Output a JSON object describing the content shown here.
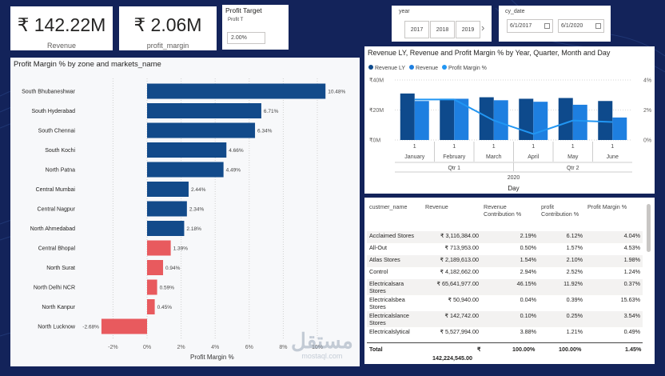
{
  "kpis": {
    "revenue_value": "₹ 142.22M",
    "revenue_label": "Revenue",
    "margin_value": "₹ 2.06M",
    "margin_label": "profit_margin"
  },
  "profit_target": {
    "title": "Profit Target",
    "subtitle": "Profit T",
    "value": "2.00%"
  },
  "year_slicer": {
    "title": "year",
    "options": [
      "2017",
      "2018",
      "2019"
    ],
    "next_icon": "chevron-right-icon"
  },
  "date_slicer": {
    "title": "cy_date",
    "start": "6/1/2017",
    "end": "6/1/2020",
    "icon": "calendar-icon"
  },
  "bar_chart": {
    "title": "Profit Margin % by zone and markets_name",
    "xlabel": "Profit Margin %",
    "colors": {
      "positive": "#124a8a",
      "negative": "#e85a5e"
    },
    "chart_data": {
      "type": "bar",
      "orientation": "horizontal",
      "categories": [
        "South Bhubaneshwar",
        "South Hyderabad",
        "South Chennai",
        "South Kochi",
        "North Patna",
        "Central Mumbai",
        "Central Nagpur",
        "North Ahmedabad",
        "Central Bhopal",
        "North Surat",
        "North Delhi NCR",
        "North Kanpur",
        "North Lucknow"
      ],
      "values": [
        10.48,
        6.71,
        6.34,
        4.66,
        4.49,
        2.44,
        2.34,
        2.18,
        1.39,
        0.94,
        0.59,
        0.45,
        -2.68
      ],
      "labels": [
        "10.48%",
        "6.71%",
        "6.34%",
        "4.66%",
        "4.49%",
        "2.44%",
        "2.34%",
        "2.18%",
        "1.39%",
        "0.94%",
        "0.59%",
        "0.45%",
        "-2.68%"
      ],
      "xticks": [
        "-2%",
        "0%",
        "2%",
        "4%",
        "6%",
        "8%",
        "10%"
      ],
      "xlim": [
        -2.68,
        10.48
      ],
      "threshold": 2.0
    }
  },
  "combo_chart": {
    "title": "Revenue LY, Revenue and Profit Margin % by Year, Quarter, Month and Day",
    "legend": [
      {
        "name": "Revenue LY",
        "color": "#0e4a8c"
      },
      {
        "name": "Revenue",
        "color": "#1e7fe0"
      },
      {
        "name": "Profit Margin %",
        "color": "#2196f3"
      }
    ],
    "y_left_ticks": [
      "₹40M",
      "₹20M",
      "₹0M"
    ],
    "y_right_ticks": [
      "4%",
      "2%",
      "0%"
    ],
    "xlabel": "Day",
    "chart_data": {
      "type": "bar",
      "categories": [
        "January",
        "February",
        "March",
        "April",
        "May",
        "June"
      ],
      "day_labels": [
        "1",
        "1",
        "1",
        "1",
        "1",
        "1"
      ],
      "quarters": [
        "Qtr 1",
        "Qtr 2"
      ],
      "year": "2020",
      "ylim": [
        0,
        40
      ],
      "y2lim": [
        0,
        4
      ],
      "series": [
        {
          "name": "Revenue LY",
          "values": [
            31,
            27.5,
            28.5,
            27.5,
            28,
            26
          ]
        },
        {
          "name": "Revenue",
          "values": [
            26,
            27.5,
            26.5,
            25.5,
            23.5,
            15
          ]
        },
        {
          "name": "Profit Margin %",
          "values": [
            2.7,
            2.7,
            1.3,
            0.4,
            1.3,
            1.2
          ]
        }
      ]
    }
  },
  "table": {
    "headers": [
      "custmer_name",
      "Revenue",
      "Revenue Contribution %",
      "profit Contribution %",
      "Profit Margin %"
    ],
    "rows": [
      [
        "Acclaimed Stores",
        "₹ 3,116,384.00",
        "2.19%",
        "6.12%",
        "4.04%"
      ],
      [
        "All-Out",
        "₹ 713,953.00",
        "0.50%",
        "1.57%",
        "4.53%"
      ],
      [
        "Atlas Stores",
        "₹ 2,189,613.00",
        "1.54%",
        "2.10%",
        "1.98%"
      ],
      [
        "Control",
        "₹ 4,182,662.00",
        "2.94%",
        "2.52%",
        "1.24%"
      ],
      [
        "Electricalsara Stores",
        "₹ 65,641,977.00",
        "46.15%",
        "11.92%",
        "0.37%"
      ],
      [
        "Electricalsbea Stores",
        "₹ 50,940.00",
        "0.04%",
        "0.39%",
        "15.63%"
      ],
      [
        "Electricalslance Stores",
        "₹ 142,742.00",
        "0.10%",
        "0.25%",
        "3.54%"
      ],
      [
        "Electricalslytical",
        "₹ 5,527,994.00",
        "3.88%",
        "1.21%",
        "0.49%"
      ]
    ],
    "total": {
      "label": "Total",
      "revenue_symbol": "₹",
      "revenue": "142,224,545.00",
      "rc": "100.00%",
      "pc": "100.00%",
      "pm": "1.45%"
    }
  },
  "watermark": {
    "arabic": "مستقل",
    "latin": "mostaql.com"
  }
}
